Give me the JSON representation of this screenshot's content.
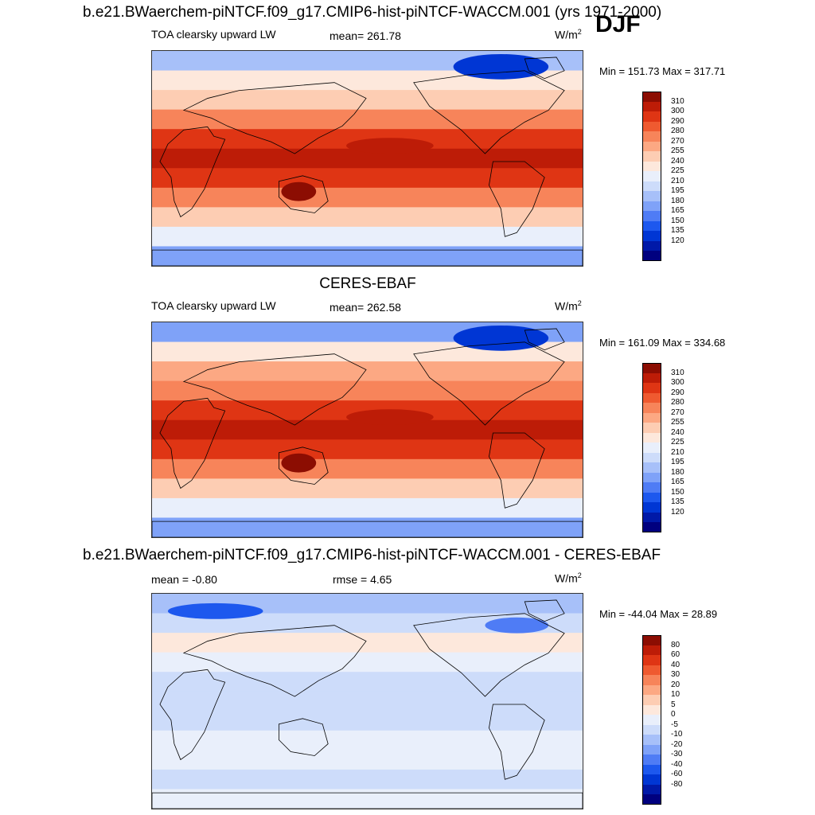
{
  "season": "DJF",
  "colors": {
    "abs_levels": [
      "#00007f",
      "#0019a8",
      "#0036d4",
      "#1d58ee",
      "#4f7cf5",
      "#7fa2f8",
      "#a7c0f9",
      "#cddcfa",
      "#e9effb",
      "#fde8dc",
      "#fdcdb3",
      "#fca883",
      "#f7845a",
      "#ef5a30",
      "#df3514",
      "#bd1c07",
      "#8c0d02"
    ],
    "diff_levels": [
      "#00007f",
      "#0019a8",
      "#0036d4",
      "#1d58ee",
      "#4f7cf5",
      "#7fa2f8",
      "#a7c0f9",
      "#cddcfa",
      "#e9effb",
      "#fde8dc",
      "#fdcdb3",
      "#fca883",
      "#f7845a",
      "#ef5a30",
      "#df3514",
      "#bd1c07",
      "#8c0d02"
    ]
  },
  "panels": [
    {
      "title": "b.e21.BWaerchem-piNTCF.f09_g17.CMIP6-hist-piNTCF-WACCM.001 (yrs 1971-2000)",
      "left_label": "TOA clearsky upward LW",
      "stat_label": "mean= 261.78",
      "units": "W/m",
      "units_exp": "2",
      "minmax": "Min = 151.73 Max = 317.71",
      "ticks": [
        "120",
        "135",
        "150",
        "165",
        "180",
        "195",
        "210",
        "225",
        "240",
        "255",
        "270",
        "280",
        "290",
        "300",
        "310"
      ],
      "field": {
        "type": "zonal-bands",
        "band_levels": [
          6,
          9,
          10,
          12,
          14,
          15,
          14,
          12,
          10,
          8,
          5
        ]
      }
    },
    {
      "title": "CERES-EBAF",
      "left_label": "TOA clearsky upward LW",
      "stat_label": "mean= 262.58",
      "units": "W/m",
      "units_exp": "2",
      "minmax": "Min = 161.09 Max = 334.68",
      "ticks": [
        "120",
        "135",
        "150",
        "165",
        "180",
        "195",
        "210",
        "225",
        "240",
        "255",
        "270",
        "280",
        "290",
        "300",
        "310"
      ],
      "field": {
        "type": "zonal-bands",
        "band_levels": [
          5,
          9,
          11,
          12,
          14,
          15,
          14,
          12,
          10,
          8,
          5
        ]
      }
    },
    {
      "title": "b.e21.BWaerchem-piNTCF.f09_g17.CMIP6-hist-piNTCF-WACCM.001 - CERES-EBAF",
      "left_label": "mean =  -0.80",
      "stat_label": "rmse =   4.65",
      "units": "W/m",
      "units_exp": "2",
      "minmax": "Min = -44.04 Max =  28.89",
      "ticks": [
        "-80",
        "-60",
        "-40",
        "-30",
        "-20",
        "-10",
        "-5",
        "0",
        "5",
        "10",
        "20",
        "30",
        "40",
        "60",
        "80"
      ],
      "field": {
        "type": "difference",
        "band_levels": [
          6,
          7,
          9,
          8,
          7,
          7,
          7,
          8,
          8,
          7,
          8
        ]
      }
    }
  ]
}
